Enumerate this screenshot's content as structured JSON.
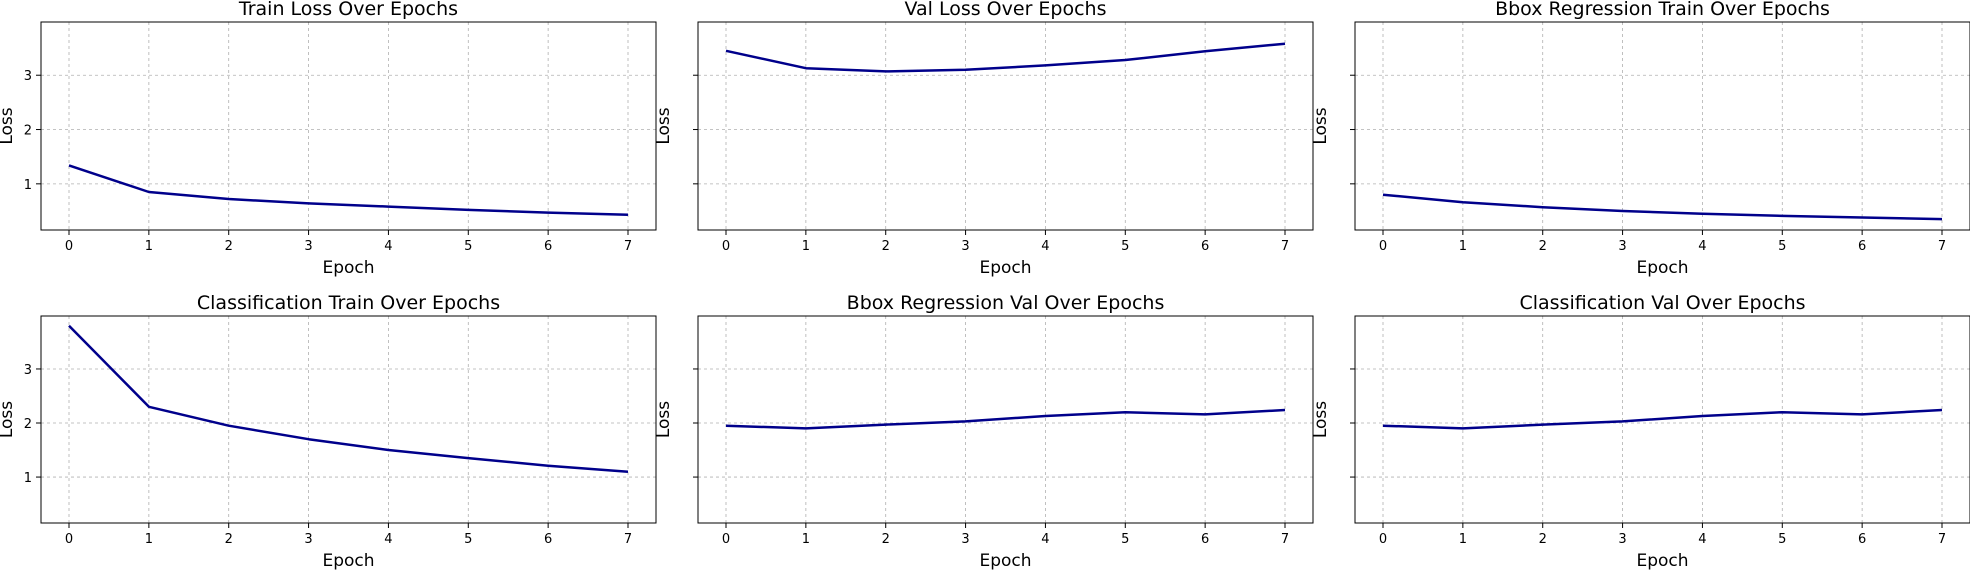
{
  "chart_data": [
    {
      "type": "line",
      "title": "Train Loss Over Epochs",
      "xlabel": "Epoch",
      "ylabel": "Loss",
      "x": [
        0,
        1,
        2,
        3,
        4,
        5,
        6,
        7
      ],
      "values": [
        1.34,
        0.85,
        0.72,
        0.64,
        0.58,
        0.52,
        0.47,
        0.43
      ],
      "xticks": [
        0,
        1,
        2,
        3,
        4,
        5,
        6,
        7
      ],
      "yticks": [
        1,
        2,
        3
      ],
      "ytick_labels_shown": true,
      "ylim": [
        0.15,
        3.98
      ],
      "grid": true,
      "color": "#00008b"
    },
    {
      "type": "line",
      "title": "Val Loss Over Epochs",
      "xlabel": "Epoch",
      "ylabel": "Loss",
      "x": [
        0,
        1,
        2,
        3,
        4,
        5,
        6,
        7
      ],
      "values": [
        3.45,
        3.13,
        3.07,
        3.1,
        3.18,
        3.28,
        3.44,
        3.58
      ],
      "xticks": [
        0,
        1,
        2,
        3,
        4,
        5,
        6,
        7
      ],
      "yticks": [
        1,
        2,
        3
      ],
      "ytick_labels_shown": false,
      "ylim": [
        0.15,
        3.98
      ],
      "grid": true,
      "color": "#00008b"
    },
    {
      "type": "line",
      "title": "Bbox Regression Train Over Epochs",
      "xlabel": "Epoch",
      "ylabel": "Loss",
      "x": [
        0,
        1,
        2,
        3,
        4,
        5,
        6,
        7
      ],
      "values": [
        0.8,
        0.66,
        0.57,
        0.5,
        0.45,
        0.41,
        0.38,
        0.35
      ],
      "xticks": [
        0,
        1,
        2,
        3,
        4,
        5,
        6,
        7
      ],
      "yticks": [
        1,
        2,
        3
      ],
      "ytick_labels_shown": false,
      "ylim": [
        0.15,
        3.98
      ],
      "grid": true,
      "color": "#00008b"
    },
    {
      "type": "line",
      "title": "Classification Train Over Epochs",
      "xlabel": "Epoch",
      "ylabel": "Loss",
      "x": [
        0,
        1,
        2,
        3,
        4,
        5,
        6,
        7
      ],
      "values": [
        3.8,
        2.3,
        1.95,
        1.7,
        1.5,
        1.35,
        1.21,
        1.1
      ],
      "xticks": [
        0,
        1,
        2,
        3,
        4,
        5,
        6,
        7
      ],
      "yticks": [
        1,
        2,
        3
      ],
      "ytick_labels_shown": true,
      "ylim": [
        0.15,
        3.98
      ],
      "grid": true,
      "color": "#00008b"
    },
    {
      "type": "line",
      "title": "Bbox Regression Val Over Epochs",
      "xlabel": "Epoch",
      "ylabel": "Loss",
      "x": [
        0,
        1,
        2,
        3,
        4,
        5,
        6,
        7
      ],
      "values": [
        1.95,
        1.9,
        1.97,
        2.03,
        2.13,
        2.2,
        2.16,
        2.24
      ],
      "xticks": [
        0,
        1,
        2,
        3,
        4,
        5,
        6,
        7
      ],
      "yticks": [
        1,
        2,
        3
      ],
      "ytick_labels_shown": false,
      "ylim": [
        0.15,
        3.98
      ],
      "grid": true,
      "color": "#00008b"
    },
    {
      "type": "line",
      "title": "Classification Val Over Epochs",
      "xlabel": "Epoch",
      "ylabel": "Loss",
      "x": [
        0,
        1,
        2,
        3,
        4,
        5,
        6,
        7
      ],
      "values": [
        1.95,
        1.9,
        1.97,
        2.03,
        2.13,
        2.2,
        2.16,
        2.24
      ],
      "xticks": [
        0,
        1,
        2,
        3,
        4,
        5,
        6,
        7
      ],
      "yticks": [
        1,
        2,
        3
      ],
      "ytick_labels_shown": false,
      "ylim": [
        0.15,
        3.98
      ],
      "grid": true,
      "color": "#00008b"
    }
  ]
}
